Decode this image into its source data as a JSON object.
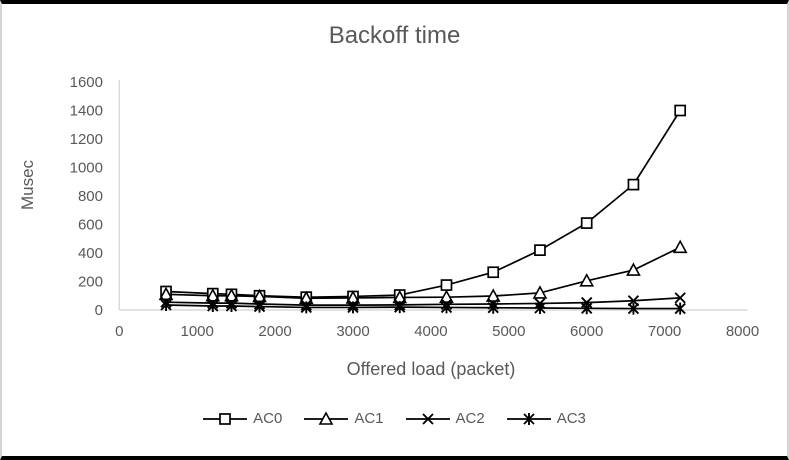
{
  "frame": {
    "background": "#ffffff",
    "top_bottom_border_color": "#000000",
    "side_border_color": "#d6d6d6"
  },
  "chart_data": {
    "type": "line",
    "title": "Backoff time",
    "xlabel": "Offered load (packet)",
    "ylabel": "Musec",
    "xlim": [
      0,
      8000
    ],
    "ylim": [
      0,
      1600
    ],
    "x_ticks": [
      0,
      1000,
      2000,
      3000,
      4000,
      5000,
      6000,
      7000,
      8000
    ],
    "y_ticks": [
      0,
      200,
      400,
      600,
      800,
      1000,
      1200,
      1400,
      1600
    ],
    "grid": false,
    "legend_position": "bottom",
    "x": [
      600,
      1200,
      1440,
      1800,
      2400,
      3000,
      3600,
      4200,
      4800,
      5400,
      6000,
      6600,
      7200
    ],
    "series": [
      {
        "name": "AC0",
        "marker": "square",
        "values": [
          130,
          115,
          110,
          100,
          90,
          95,
          105,
          175,
          265,
          420,
          610,
          880,
          1400
        ]
      },
      {
        "name": "AC1",
        "marker": "triangle",
        "values": [
          110,
          100,
          100,
          95,
          82,
          85,
          88,
          90,
          98,
          120,
          205,
          280,
          440
        ]
      },
      {
        "name": "AC2",
        "marker": "x",
        "values": [
          55,
          48,
          48,
          42,
          34,
          34,
          36,
          40,
          42,
          46,
          52,
          65,
          85
        ]
      },
      {
        "name": "AC3",
        "marker": "asterisk",
        "values": [
          35,
          28,
          28,
          24,
          18,
          18,
          20,
          18,
          16,
          14,
          12,
          10,
          10
        ]
      }
    ],
    "colors": {
      "series_stroke": "#000000",
      "marker_fill": "#ffffff",
      "text": "#595959",
      "axis_line": "#d9d9d9"
    }
  }
}
